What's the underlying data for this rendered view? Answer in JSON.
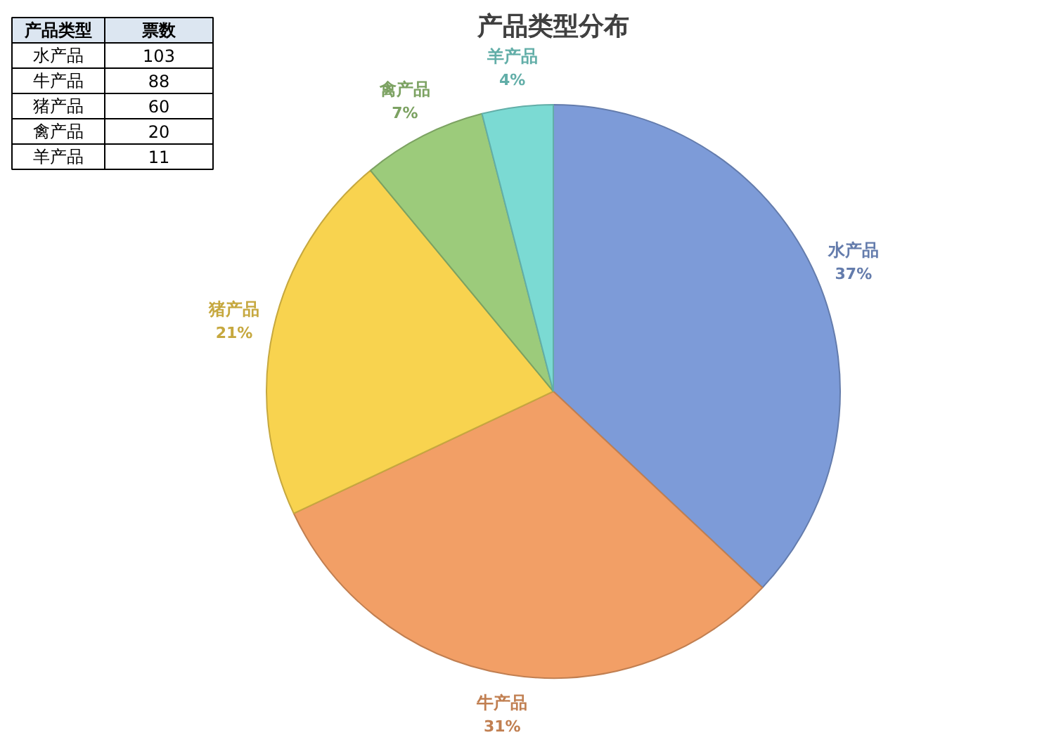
{
  "chart_data": [
    {
      "type": "other",
      "categories": [
        "水产品",
        "牛产品",
        "猪产品",
        "禽产品",
        "羊产品"
      ],
      "values": [
        103,
        88,
        60,
        20,
        11
      ],
      "data_labels": true,
      "xlabel": "产品类型",
      "ylabel": "票数"
    },
    {
      "type": "pie",
      "title": "产品类型分布",
      "categories": [
        "水产品",
        "牛产品",
        "猪产品",
        "禽产品",
        "羊产品"
      ],
      "values": [
        37,
        31,
        21,
        7,
        4
      ],
      "colors": [
        "#7d9bd8",
        "#f29f66",
        "#f8d34f",
        "#9ccb7b",
        "#7bdad3"
      ],
      "value_labels": [
        "37%",
        "31%",
        "21%",
        "7%",
        "4%"
      ]
    }
  ]
}
